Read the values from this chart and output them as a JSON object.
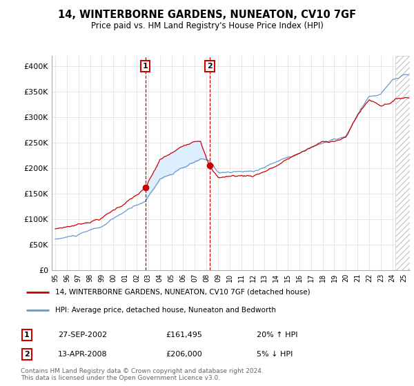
{
  "title": "14, WINTERBORNE GARDENS, NUNEATON, CV10 7GF",
  "subtitle": "Price paid vs. HM Land Registry's House Price Index (HPI)",
  "legend_label_red": "14, WINTERBORNE GARDENS, NUNEATON, CV10 7GF (detached house)",
  "legend_label_blue": "HPI: Average price, detached house, Nuneaton and Bedworth",
  "annotation1_label": "1",
  "annotation1_date": "27-SEP-2002",
  "annotation1_price": "£161,495",
  "annotation1_hpi": "20% ↑ HPI",
  "annotation1_year": 2002.75,
  "annotation1_value": 161495,
  "annotation2_label": "2",
  "annotation2_date": "13-APR-2008",
  "annotation2_price": "£206,000",
  "annotation2_hpi": "5% ↓ HPI",
  "annotation2_year": 2008.29,
  "annotation2_value": 206000,
  "footer": "Contains HM Land Registry data © Crown copyright and database right 2024.\nThis data is licensed under the Open Government Licence v3.0.",
  "red_color": "#cc0000",
  "blue_color": "#6699cc",
  "shading_color": "#ddeeff",
  "hatch_color": "#cccccc",
  "ylim": [
    0,
    420000
  ],
  "yticks": [
    0,
    50000,
    100000,
    150000,
    200000,
    250000,
    300000,
    350000,
    400000
  ],
  "ytick_labels": [
    "£0",
    "£50K",
    "£100K",
    "£150K",
    "£200K",
    "£250K",
    "£300K",
    "£350K",
    "£400K"
  ],
  "xlim_start": 1995.0,
  "xlim_end": 2025.5,
  "hatch_start": 2024.25
}
